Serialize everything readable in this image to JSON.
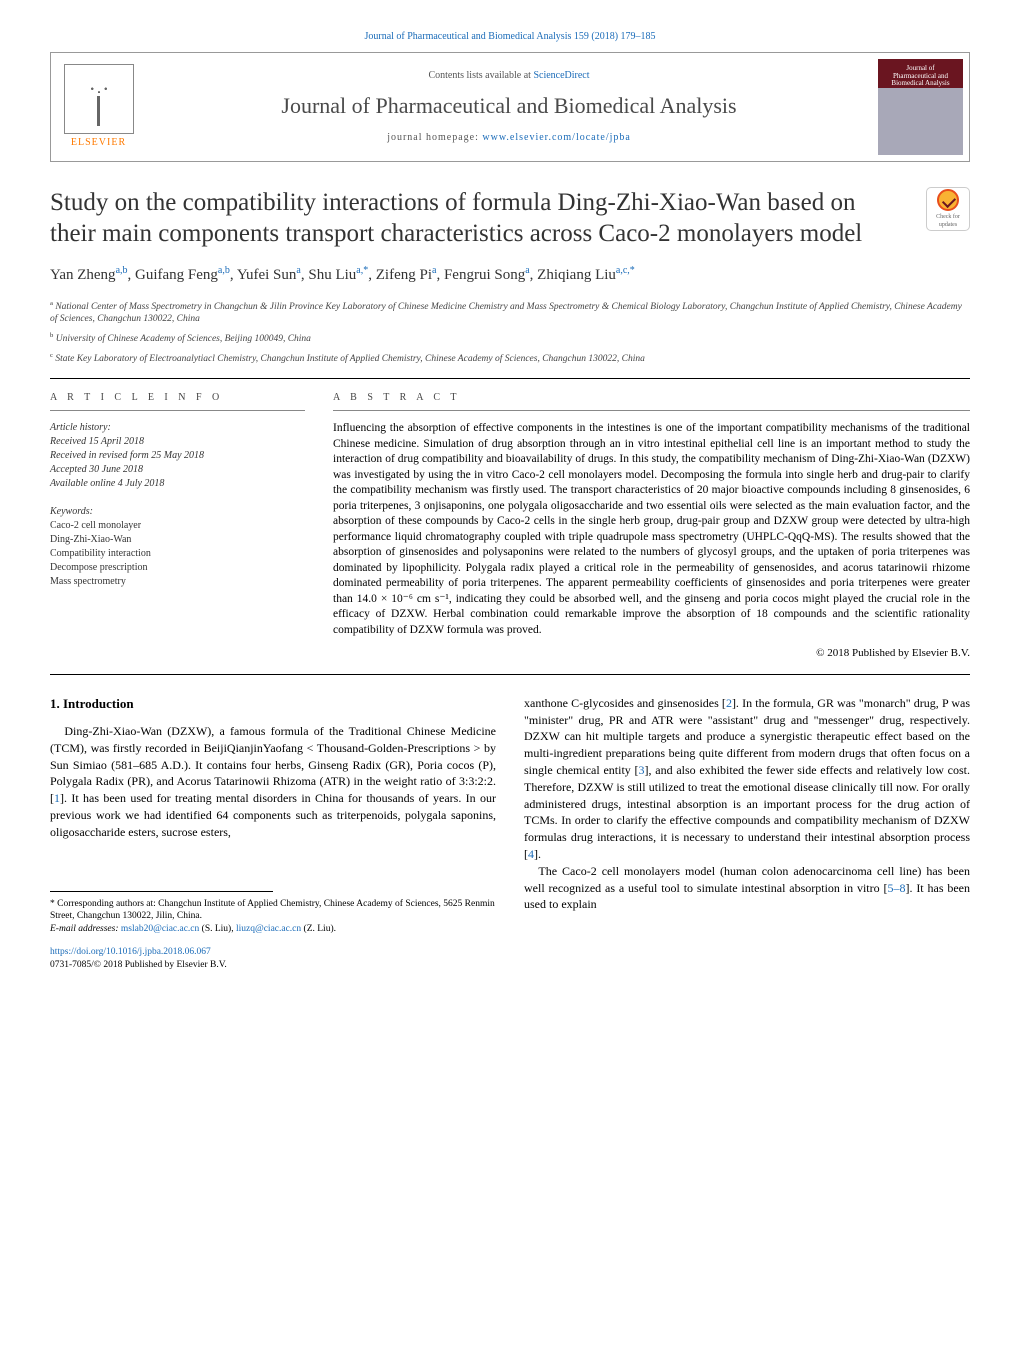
{
  "top_link": "Journal of Pharmaceutical and Biomedical Analysis 159 (2018) 179–185",
  "header": {
    "contents_prefix": "Contents lists available at ",
    "contents_link": "ScienceDirect",
    "journal_name": "Journal of Pharmaceutical and Biomedical Analysis",
    "homepage_prefix": "journal homepage: ",
    "homepage_url": "www.elsevier.com/locate/jpba",
    "elsevier": "ELSEVIER",
    "cover_text": "Journal of Pharmaceutical and Biomedical Analysis"
  },
  "check_badge": {
    "text": "Check for updates"
  },
  "title": "Study on the compatibility interactions of formula Ding-Zhi-Xiao-Wan based on their main components transport characteristics across Caco-2 monolayers model",
  "authors_html": "Yan Zheng<sup>a,b</sup>, Guifang Feng<sup>a,b</sup>, Yufei Sun<sup>a</sup>, Shu Liu<sup>a,*</sup>, Zifeng Pi<sup>a</sup>, Fengrui Song<sup>a</sup>, Zhiqiang Liu<sup>a,c,*</sup>",
  "affiliations": [
    {
      "sup": "a",
      "text": "National Center of Mass Spectrometry in Changchun & Jilin Province Key Laboratory of Chinese Medicine Chemistry and Mass Spectrometry & Chemical Biology Laboratory, Changchun Institute of Applied Chemistry, Chinese Academy of Sciences, Changchun 130022, China"
    },
    {
      "sup": "b",
      "text": "University of Chinese Academy of Sciences, Beijing 100049, China"
    },
    {
      "sup": "c",
      "text": "State Key Laboratory of Electroanalytiacl Chemistry, Changchun Institute of Applied Chemistry, Chinese Academy of Sciences, Changchun 130022, China"
    }
  ],
  "article_info": {
    "label": "A R T I C L E   I N F O",
    "history_hdr": "Article history:",
    "received": "Received 15 April 2018",
    "revised": "Received in revised form 25 May 2018",
    "accepted": "Accepted 30 June 2018",
    "online": "Available online 4 July 2018",
    "keywords_hdr": "Keywords:",
    "keywords": [
      "Caco-2 cell monolayer",
      "Ding-Zhi-Xiao-Wan",
      "Compatibility interaction",
      "Decompose prescription",
      "Mass spectrometry"
    ]
  },
  "abstract": {
    "label": "A B S T R A C T",
    "text": "Influencing the absorption of effective components in the intestines is one of the important compatibility mechanisms of the traditional Chinese medicine. Simulation of drug absorption through an in vitro intestinal epithelial cell line is an important method to study the interaction of drug compatibility and bioavailability of drugs. In this study, the compatibility mechanism of Ding-Zhi-Xiao-Wan (DZXW) was investigated by using the in vitro Caco-2 cell monolayers model. Decomposing the formula into single herb and drug-pair to clarify the compatibility mechanism was firstly used. The transport characteristics of 20 major bioactive compounds including 8 ginsenosides, 6 poria triterpenes, 3 onjisaponins, one polygala oligosaccharide and two essential oils were selected as the main evaluation factor, and the absorption of these compounds by Caco-2 cells in the single herb group, drug-pair group and DZXW group were detected by ultra-high performance liquid chromatography coupled with triple quadrupole mass spectrometry (UHPLC-QqQ-MS). The results showed that the absorption of ginsenosides and polysaponins were related to the numbers of glycosyl groups, and the uptaken of poria triterpenes was dominated by lipophilicity. Polygala radix played a critical role in the permeability of gensenosides, and acorus tatarinowii rhizome dominated permeability of poria triterpenes. The apparent permeability coefficients of ginsenosides and poria triterpenes were greater than 14.0 × 10⁻⁶ cm s⁻¹, indicating they could be absorbed well, and the ginseng and poria cocos might played the crucial role in the efficacy of DZXW. Herbal combination could remarkable improve the absorption of 18 compounds and the scientific rationality compatibility of DZXW formula was proved.",
    "copyright": "© 2018 Published by Elsevier B.V."
  },
  "intro": {
    "heading": "1. Introduction",
    "p1_pre": "Ding-Zhi-Xiao-Wan (DZXW), a famous formula of the Traditional Chinese Medicine (TCM), was firstly recorded in BeijiQianjinYaofang < Thousand-Golden-Prescriptions > by Sun Simiao (581–685 A.D.). It contains four herbs, Ginseng Radix (GR), Poria cocos (P), Polygala Radix (PR), and Acorus Tatarinowii Rhizoma (ATR) in the weight ratio of 3:3:2:2. [",
    "p1_ref1": "1",
    "p1_post": "]. It has been used for treating mental disorders in China for thousands of years. In our previous work we had identified 64 components such as triterpenoids, polygala saponins, oligosaccharide esters, sucrose esters,",
    "p2_a": "xanthone C-glycosides and ginsenosides [",
    "p2_ref2": "2",
    "p2_b": "]. In the formula, GR was \"monarch\" drug, P was \"minister\" drug, PR and ATR were \"assistant\" drug and \"messenger\" drug, respectively. DZXW can hit multiple targets and produce a synergistic therapeutic effect based on the multi-ingredient preparations being quite different from modern drugs that often focus on a single chemical entity [",
    "p2_ref3": "3",
    "p2_c": "], and also exhibited the fewer side effects and relatively low cost. Therefore, DZXW is still utilized to treat the emotional disease clinically till now. For orally administered drugs, intestinal absorption is an important process for the drug action of TCMs. In order to clarify the effective compounds and compatibility mechanism of DZXW formulas drug interactions, it is necessary to understand their intestinal absorption process [",
    "p2_ref4": "4",
    "p2_d": "].",
    "p3_a": "The Caco-2 cell monolayers model (human colon adenocarcinoma cell line) has been well recognized as a useful tool to simulate intestinal absorption in vitro [",
    "p3_ref5": "5–8",
    "p3_b": "]. It has been used to explain"
  },
  "footnote": {
    "star": "* Corresponding authors at: Changchun Institute of Applied Chemistry, Chinese Academy of Sciences, 5625 Renmin Street, Changchun 130022, Jilin, China.",
    "email_label": "E-mail addresses: ",
    "email1": "mslab20@ciac.ac.cn",
    "email1_who": " (S. Liu), ",
    "email2": "liuzq@ciac.ac.cn",
    "email2_who": " (Z. Liu)."
  },
  "doi": {
    "url": "https://doi.org/10.1016/j.jpba.2018.06.067",
    "issn_line": "0731-7085/© 2018 Published by Elsevier B.V."
  },
  "colors": {
    "link": "#1a6bb8",
    "elsevier_orange": "#ff7a00",
    "cover_red": "#6a1520"
  }
}
